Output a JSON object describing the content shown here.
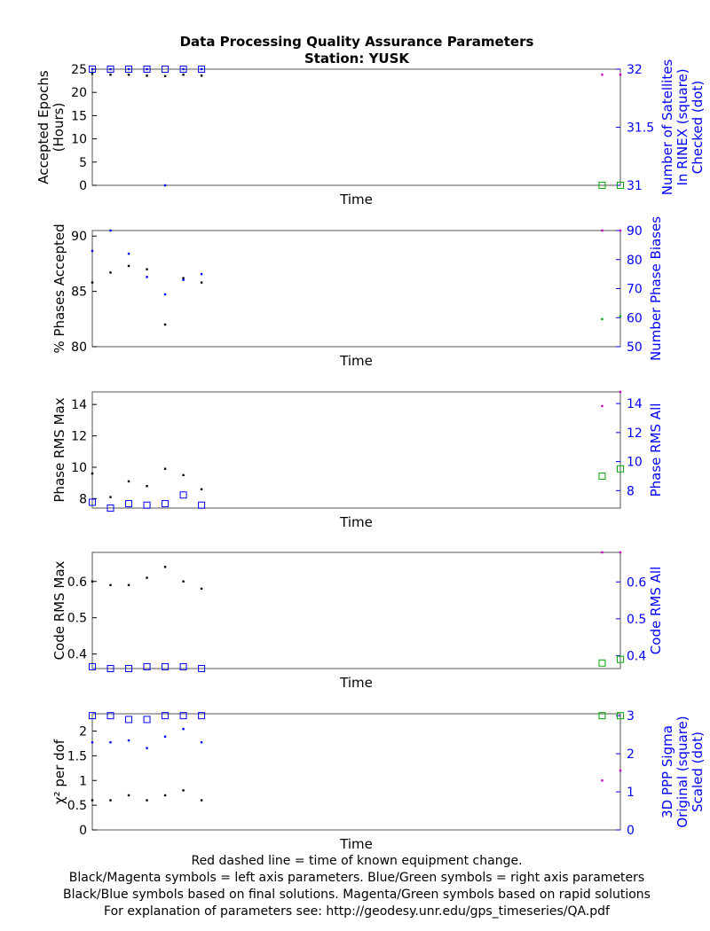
{
  "chart_data": {
    "title": "Data Processing Quality Assurance Parameters",
    "subtitle": "Station: YUSK",
    "footer": [
      "Red dashed line = time of known equipment change.",
      "Black/Magenta symbols = left axis parameters. Blue/Green symbols = right axis parameters",
      "Black/Blue symbols based on final solutions.  Magenta/Green symbols based on rapid solutions",
      "For explanation of parameters see: http://geodesy.unr.edu/gps_timeseries/QA.pdf"
    ],
    "colors": {
      "final_left": "#000000",
      "final_right": "#0000ff",
      "rapid_left": "#cc00cc",
      "rapid_right": "#00aa00"
    },
    "panels": [
      {
        "type": "scatter",
        "xlabel": "Time",
        "ylabel_left": [
          "Accepted Epochs",
          "(Hours)"
        ],
        "ylabel_right": [
          "Number of Satellites",
          "In RINEX (square)",
          "Checked (dot)"
        ],
        "ylim_left": [
          0,
          25
        ],
        "yticks_left": [
          0,
          5,
          10,
          15,
          20,
          25
        ],
        "ylim_right": [
          31,
          32
        ],
        "yticks_right": [
          31,
          31.5,
          32
        ],
        "yticklabels_right": [
          "31",
          "31.5",
          "32"
        ],
        "x": [
          0,
          1,
          2,
          3,
          4,
          5,
          6,
          28,
          29
        ],
        "series": [
          {
            "role": "final_left",
            "marker": "dot",
            "values": [
              24,
              23.8,
              23.8,
              23.6,
              23.5,
              23.8,
              23.6,
              null,
              null
            ]
          },
          {
            "role": "final_right",
            "marker": "square",
            "values": [
              32,
              32,
              32,
              32,
              32,
              32,
              32,
              null,
              null
            ]
          },
          {
            "role": "final_right",
            "marker": "dot",
            "values": [
              32,
              32,
              32,
              32,
              31,
              32,
              32,
              null,
              null
            ]
          },
          {
            "role": "rapid_left",
            "marker": "dot",
            "values": [
              null,
              null,
              null,
              null,
              null,
              null,
              null,
              23.8,
              23.8
            ]
          },
          {
            "role": "rapid_right",
            "marker": "square",
            "values": [
              null,
              null,
              null,
              null,
              null,
              null,
              null,
              31,
              31
            ]
          }
        ]
      },
      {
        "type": "scatter",
        "xlabel": "Time",
        "ylabel_left": [
          "% Phases Accepted"
        ],
        "ylabel_right": [
          "Number Phase Biases"
        ],
        "ylim_left": [
          80,
          90.5
        ],
        "yticks_left": [
          80,
          85,
          90
        ],
        "ylim_right": [
          50,
          90
        ],
        "yticks_right": [
          50,
          60,
          70,
          80,
          90
        ],
        "x": [
          0,
          1,
          2,
          3,
          4,
          5,
          6,
          28,
          29
        ],
        "series": [
          {
            "role": "final_left",
            "marker": "dot",
            "values": [
              85.8,
              86.7,
              87.3,
              87,
              82,
              86.2,
              85.8,
              null,
              null
            ]
          },
          {
            "role": "final_right",
            "marker": "dot",
            "values": [
              83,
              90,
              82,
              74,
              68,
              73,
              75,
              null,
              null
            ]
          },
          {
            "role": "rapid_left",
            "marker": "dot",
            "values": [
              null,
              null,
              null,
              null,
              null,
              null,
              null,
              90.5,
              90.5
            ]
          },
          {
            "role": "rapid_right",
            "marker": "dot",
            "values": [
              null,
              null,
              null,
              null,
              null,
              null,
              null,
              59.5,
              60.5
            ]
          }
        ]
      },
      {
        "type": "scatter",
        "xlabel": "Time",
        "ylabel_left": [
          "Phase RMS Max"
        ],
        "ylabel_right": [
          "Phase RMS All"
        ],
        "ylim_left": [
          7.4,
          14.8
        ],
        "yticks_left": [
          8,
          10,
          12,
          14
        ],
        "ylim_right": [
          6.8,
          14.8
        ],
        "yticks_right": [
          8,
          10,
          12,
          14
        ],
        "x": [
          0,
          1,
          2,
          3,
          4,
          5,
          6,
          28,
          29
        ],
        "series": [
          {
            "role": "final_left",
            "marker": "dot",
            "values": [
              9.6,
              8.1,
              9.1,
              8.8,
              9.9,
              9.5,
              8.6,
              null,
              null
            ]
          },
          {
            "role": "final_right",
            "marker": "square",
            "values": [
              7.2,
              6.8,
              7.1,
              7.0,
              7.1,
              7.7,
              7.0,
              null,
              null
            ]
          },
          {
            "role": "rapid_left",
            "marker": "dot",
            "values": [
              null,
              null,
              null,
              null,
              null,
              null,
              null,
              13.9,
              14.8
            ]
          },
          {
            "role": "rapid_right",
            "marker": "square",
            "values": [
              null,
              null,
              null,
              null,
              null,
              null,
              null,
              9.0,
              9.5
            ]
          }
        ]
      },
      {
        "type": "scatter",
        "xlabel": "Time",
        "ylabel_left": [
          "Code RMS Max"
        ],
        "ylabel_right": [
          "Code RMS All"
        ],
        "ylim_left": [
          0.36,
          0.68
        ],
        "yticks_left": [
          0.4,
          0.5,
          0.6
        ],
        "ylim_right": [
          0.365,
          0.68
        ],
        "yticks_right": [
          0.4,
          0.5,
          0.6
        ],
        "x": [
          0,
          1,
          2,
          3,
          4,
          5,
          6,
          28,
          29
        ],
        "series": [
          {
            "role": "final_left",
            "marker": "dot",
            "values": [
              0.6,
              0.59,
              0.59,
              0.61,
              0.64,
              0.6,
              0.58,
              null,
              null
            ]
          },
          {
            "role": "final_right",
            "marker": "square",
            "values": [
              0.37,
              0.365,
              0.365,
              0.37,
              0.37,
              0.37,
              0.365,
              null,
              null
            ]
          },
          {
            "role": "rapid_left",
            "marker": "dot",
            "values": [
              null,
              null,
              null,
              null,
              null,
              null,
              null,
              0.68,
              0.68
            ]
          },
          {
            "role": "rapid_right",
            "marker": "square",
            "values": [
              null,
              null,
              null,
              null,
              null,
              null,
              null,
              0.38,
              0.39
            ]
          }
        ]
      },
      {
        "type": "scatter",
        "xlabel": "Time",
        "ylabel_left": [
          "χ² per dof"
        ],
        "ylabel_right": [
          "3D PPP Sigma",
          "Original (square)",
          "Scaled (dot)"
        ],
        "ylim_left": [
          0,
          2.35
        ],
        "yticks_left": [
          0,
          0.5,
          1,
          1.5,
          2
        ],
        "ylim_right": [
          0,
          3.05
        ],
        "yticks_right": [
          0,
          1,
          2,
          3
        ],
        "x": [
          0,
          1,
          2,
          3,
          4,
          5,
          6,
          28,
          29
        ],
        "series": [
          {
            "role": "final_left",
            "marker": "dot",
            "values": [
              0.6,
              0.6,
              0.7,
              0.6,
              0.7,
              0.8,
              0.6,
              null,
              null
            ]
          },
          {
            "role": "final_right",
            "marker": "square",
            "values": [
              3.0,
              3.0,
              2.9,
              2.9,
              3.0,
              3.0,
              3.0,
              null,
              null
            ]
          },
          {
            "role": "final_right",
            "marker": "dot",
            "values": [
              2.3,
              2.3,
              2.35,
              2.15,
              2.45,
              2.65,
              2.3,
              null,
              null
            ]
          },
          {
            "role": "rapid_left",
            "marker": "dot",
            "values": [
              null,
              null,
              null,
              null,
              null,
              null,
              null,
              1.0,
              1.2
            ]
          },
          {
            "role": "rapid_right",
            "marker": "square",
            "values": [
              null,
              null,
              null,
              null,
              null,
              null,
              null,
              3.0,
              3.0
            ]
          }
        ]
      }
    ]
  }
}
